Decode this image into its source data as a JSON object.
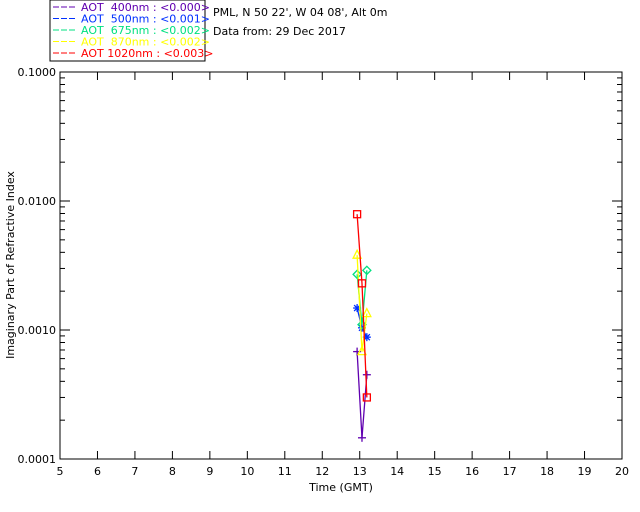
{
  "chart_data": {
    "type": "line",
    "title": "",
    "xlabel": "Time (GMT)",
    "ylabel": "Imaginary Part of Refractive Index",
    "xlim": [
      5,
      20
    ],
    "ylim": [
      0.0001,
      0.1
    ],
    "yscale": "log",
    "xticks": [
      "5",
      "6",
      "7",
      "8",
      "9",
      "10",
      "11",
      "12",
      "13",
      "14",
      "15",
      "16",
      "17",
      "18",
      "19",
      "20"
    ],
    "yticks": [
      {
        "v": 0.1,
        "label": "0.1000"
      },
      {
        "v": 0.01,
        "label": "0.0100"
      },
      {
        "v": 0.001,
        "label": "0.0010"
      },
      {
        "v": 0.0001,
        "label": "0.0001"
      }
    ],
    "site": "PML, N 50 22', W 04 08', Alt 0m",
    "date": "Data from: 29 Dec 2017",
    "series": [
      {
        "name": "AOT  400nm : <0.000>",
        "color": "#6000b0",
        "marker": "plus",
        "x": [
          12.93,
          13.06,
          13.19
        ],
        "y": [
          0.00068,
          0.000146,
          0.00045
        ]
      },
      {
        "name": "AOT  500nm : <0.001>",
        "color": "#0030ff",
        "marker": "asterisk",
        "x": [
          12.93,
          13.06,
          13.19
        ],
        "y": [
          0.00148,
          0.00104,
          0.00088
        ]
      },
      {
        "name": "AOT  675nm : <0.002>",
        "color": "#00e080",
        "marker": "diamond",
        "x": [
          12.93,
          13.06,
          13.19
        ],
        "y": [
          0.0027,
          0.0011,
          0.0029
        ]
      },
      {
        "name": "AOT  870nm : <0.002>",
        "color": "#ffff00",
        "marker": "triangle",
        "x": [
          12.93,
          13.06,
          13.19
        ],
        "y": [
          0.0038,
          0.00068,
          0.00134
        ]
      },
      {
        "name": "AOT 1020nm : <0.003>",
        "color": "#ff0000",
        "marker": "square",
        "x": [
          12.93,
          13.06,
          13.19
        ],
        "y": [
          0.0079,
          0.0023,
          0.0003
        ]
      }
    ]
  }
}
